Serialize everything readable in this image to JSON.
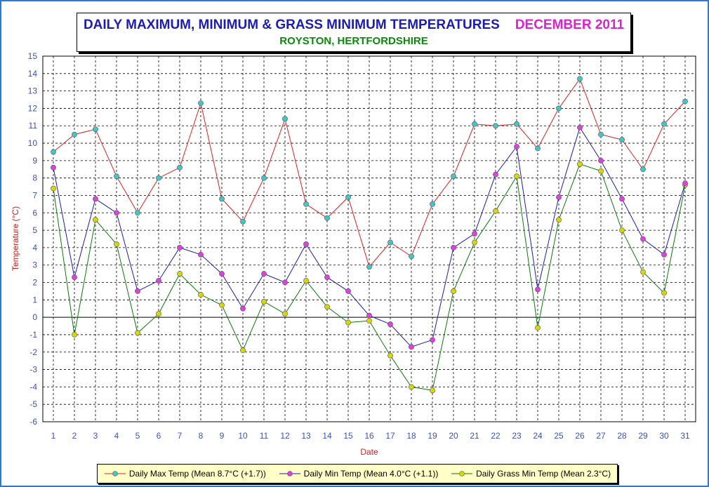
{
  "title": "DAILY MAXIMUM, MINIMUM & GRASS MINIMUM TEMPERATURES",
  "month": "DECEMBER 2011",
  "subtitle": "ROYSTON, HERTFORDSHIRE",
  "colors": {
    "title": "#1c1cb4",
    "month": "#e020d0",
    "subtitle": "#0b8a0b",
    "axis_label": "#d42020",
    "tick_label": "#3c50c8"
  },
  "chart_data": {
    "type": "line",
    "xlabel": "Date",
    "ylabel": "Temperature (°C)",
    "ylim": [
      -6,
      15
    ],
    "grid": true,
    "legend_position": "bottom",
    "x": [
      1,
      2,
      3,
      4,
      5,
      6,
      7,
      8,
      9,
      10,
      11,
      12,
      13,
      14,
      15,
      16,
      17,
      18,
      19,
      20,
      21,
      22,
      23,
      24,
      25,
      26,
      27,
      28,
      29,
      30,
      31
    ],
    "series": [
      {
        "name": "Daily Max Temp (Mean 8.7°C (+1.7))",
        "line_color": "#e02020",
        "marker_color": "#40c8c8",
        "values": [
          9.5,
          10.5,
          10.8,
          8.1,
          6.0,
          8.0,
          8.6,
          12.3,
          6.8,
          5.5,
          8.0,
          11.4,
          6.5,
          5.7,
          6.9,
          2.9,
          4.3,
          3.5,
          6.5,
          8.1,
          11.1,
          11.0,
          11.1,
          9.7,
          12.0,
          13.7,
          10.5,
          10.2,
          8.5,
          11.1,
          12.4
        ]
      },
      {
        "name": "Daily Min Temp (Mean 4.0°C (+1.1))",
        "line_color": "#1c1cb4",
        "marker_color": "#e040e0",
        "values": [
          8.6,
          2.3,
          6.8,
          6.0,
          1.5,
          2.1,
          4.0,
          3.6,
          2.5,
          0.5,
          2.5,
          2.0,
          4.2,
          2.3,
          1.5,
          0.1,
          -0.4,
          -1.7,
          -1.3,
          4.0,
          4.8,
          8.2,
          9.8,
          1.6,
          6.9,
          10.9,
          9.0,
          6.8,
          4.5,
          3.6,
          7.7
        ]
      },
      {
        "name": "Daily Grass Min Temp (Mean 2.3°C)",
        "line_color": "#0b7a0b",
        "marker_color": "#d8d800",
        "values": [
          7.4,
          -1.0,
          5.6,
          4.2,
          -0.9,
          0.2,
          2.5,
          1.3,
          0.7,
          -1.9,
          0.9,
          0.2,
          2.1,
          0.6,
          -0.3,
          -0.2,
          -2.2,
          -4.0,
          -4.2,
          1.5,
          4.3,
          6.1,
          8.1,
          -0.6,
          5.6,
          8.8,
          8.4,
          5.0,
          2.6,
          1.4,
          7.6
        ]
      }
    ]
  }
}
